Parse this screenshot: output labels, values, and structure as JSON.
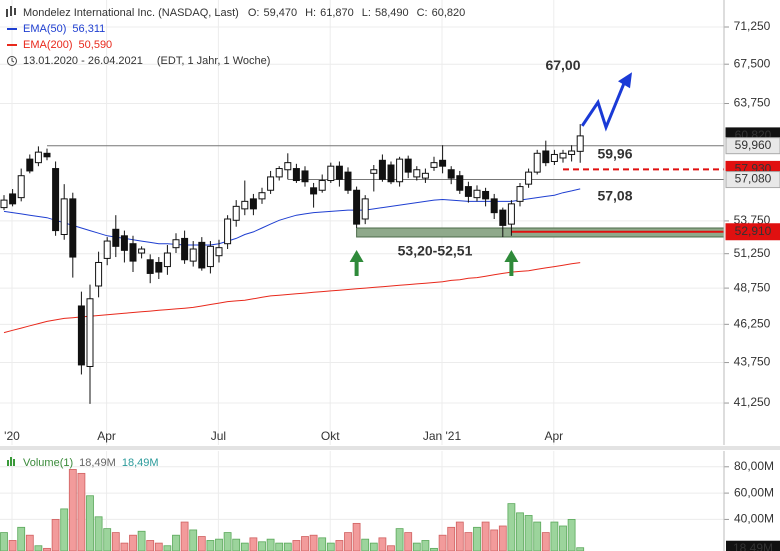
{
  "chart_data": {
    "type": "candlestick",
    "title": "Mondelez International Inc. (NASDAQ, Last)",
    "quote": {
      "labels": [
        "O:",
        "H:",
        "L:",
        "C:"
      ],
      "values": [
        59.47,
        61.87,
        58.49,
        60.82
      ],
      "value_labels": [
        "59,470",
        "61,870",
        "58,490",
        "60,820"
      ]
    },
    "period": "13.01.2020 - 26.04.2021",
    "period_note": "(EDT, 1 Jahr, 1 Woche)",
    "categories": [
      "'20",
      null,
      null,
      null,
      null,
      null,
      null,
      null,
      null,
      null,
      null,
      "Apr",
      null,
      null,
      null,
      null,
      null,
      null,
      null,
      null,
      null,
      null,
      null,
      null,
      "Jul",
      null,
      null,
      null,
      null,
      null,
      null,
      null,
      null,
      null,
      null,
      null,
      null,
      "Okt",
      null,
      null,
      null,
      null,
      null,
      null,
      null,
      null,
      null,
      null,
      null,
      null,
      "Jan '21",
      null,
      null,
      null,
      null,
      null,
      null,
      null,
      null,
      null,
      null,
      null,
      null,
      "Apr",
      null,
      null,
      null,
      null
    ],
    "open": [
      54.8,
      55.9,
      55.6,
      58.8,
      58.5,
      59.3,
      58.0,
      52.7,
      55.5,
      47.5,
      43.5,
      48.9,
      50.9,
      53.1,
      52.6,
      52.0,
      51.3,
      50.8,
      50.6,
      50.3,
      51.7,
      52.4,
      50.7,
      52.1,
      50.3,
      51.1,
      52.0,
      53.8,
      54.7,
      55.5,
      55.5,
      56.2,
      57.3,
      57.9,
      58.0,
      57.8,
      56.4,
      56.2,
      57.0,
      58.2,
      57.7,
      56.2,
      53.9,
      57.6,
      58.7,
      58.3,
      56.9,
      58.8,
      57.3,
      57.2,
      58.1,
      58.7,
      57.9,
      57.4,
      56.5,
      55.6,
      56.1,
      55.5,
      54.6,
      53.5,
      55.3,
      56.7,
      57.7,
      59.5,
      58.6,
      58.9,
      59.2,
      59.47
    ],
    "high": [
      55.8,
      56.3,
      58.0,
      59.2,
      59.9,
      59.7,
      58.6,
      56.7,
      56.0,
      48.5,
      49.0,
      51.4,
      52.5,
      54.2,
      53.0,
      52.6,
      51.8,
      51.2,
      51.0,
      51.9,
      52.8,
      53.0,
      52.2,
      52.5,
      52.2,
      52.3,
      54.2,
      55.4,
      57.0,
      55.9,
      56.4,
      57.8,
      58.2,
      59.3,
      58.4,
      58.2,
      56.8,
      57.5,
      58.5,
      58.6,
      58.1,
      56.5,
      55.8,
      58.3,
      59.2,
      58.6,
      59.0,
      59.1,
      58.2,
      58.0,
      59.0,
      60.0,
      58.2,
      57.8,
      56.9,
      56.6,
      56.4,
      55.9,
      54.8,
      55.4,
      56.8,
      58.0,
      59.6,
      60.4,
      59.6,
      59.6,
      60.0,
      61.87
    ],
    "low": [
      54.6,
      54.9,
      55.3,
      57.6,
      58.2,
      58.7,
      52.6,
      52.3,
      49.5,
      43.0,
      41.2,
      48.1,
      50.4,
      51.0,
      50.6,
      49.9,
      50.9,
      49.1,
      49.4,
      49.7,
      51.3,
      50.5,
      50.3,
      50.0,
      49.8,
      50.6,
      51.6,
      53.3,
      54.2,
      54.2,
      55.1,
      55.9,
      57.0,
      57.1,
      56.8,
      56.5,
      54.8,
      56.0,
      56.8,
      56.5,
      55.9,
      53.2,
      53.5,
      56.1,
      56.9,
      56.7,
      56.5,
      57.2,
      57.0,
      56.8,
      57.8,
      57.6,
      56.7,
      55.9,
      55.2,
      55.3,
      54.9,
      53.9,
      52.5,
      52.6,
      54.9,
      56.4,
      57.5,
      58.2,
      58.3,
      58.5,
      58.6,
      58.49
    ],
    "close": [
      55.4,
      55.1,
      57.4,
      57.8,
      59.4,
      59.0,
      53.0,
      55.5,
      51.0,
      43.6,
      48.0,
      50.6,
      52.2,
      51.8,
      51.5,
      50.7,
      51.6,
      49.8,
      49.9,
      51.3,
      52.3,
      50.8,
      51.6,
      50.2,
      51.8,
      51.7,
      53.9,
      54.9,
      55.3,
      54.7,
      56.0,
      57.3,
      58.0,
      58.5,
      57.0,
      56.9,
      55.9,
      57.0,
      58.2,
      57.1,
      56.2,
      53.5,
      55.5,
      57.9,
      57.1,
      56.9,
      58.8,
      57.7,
      57.9,
      57.6,
      58.5,
      58.2,
      57.2,
      56.2,
      55.7,
      56.2,
      55.5,
      54.4,
      53.4,
      55.1,
      56.5,
      57.7,
      59.3,
      58.5,
      59.2,
      59.3,
      59.5,
      60.82
    ],
    "up_color": "#ffffff",
    "down_color": "#111111",
    "series": [
      {
        "name": "EMA(50)",
        "color": "#1f3fd1",
        "last_label": "56,311",
        "values": [
          54.5,
          54.4,
          54.3,
          54.2,
          54.1,
          54.0,
          53.8,
          53.6,
          53.4,
          53.2,
          53.0,
          52.8,
          52.6,
          52.5,
          52.4,
          52.3,
          52.2,
          52.1,
          52.0,
          52.0,
          51.95,
          51.9,
          51.9,
          51.9,
          51.9,
          52.0,
          52.2,
          52.4,
          52.7,
          52.9,
          53.2,
          53.5,
          53.8,
          54.0,
          54.2,
          54.3,
          54.4,
          54.45,
          54.5,
          54.55,
          54.6,
          54.6,
          54.6,
          54.7,
          54.8,
          54.9,
          55.0,
          55.1,
          55.2,
          55.3,
          55.4,
          55.45,
          55.4,
          55.35,
          55.3,
          55.3,
          55.3,
          55.3,
          55.3,
          55.3,
          55.4,
          55.5,
          55.6,
          55.7,
          55.8,
          56.0,
          56.15,
          56.311
        ]
      },
      {
        "name": "EMA(200)",
        "color": "#e8291c",
        "last_label": "50,590",
        "values": [
          45.7,
          45.85,
          46.0,
          46.15,
          46.3,
          46.45,
          46.55,
          46.65,
          46.7,
          46.75,
          46.8,
          46.85,
          46.9,
          46.95,
          47.0,
          47.05,
          47.1,
          47.15,
          47.2,
          47.25,
          47.3,
          47.35,
          47.4,
          47.5,
          47.6,
          47.7,
          47.8,
          47.85,
          47.9,
          48.0,
          48.1,
          48.2,
          48.25,
          48.3,
          48.35,
          48.4,
          48.45,
          48.5,
          48.55,
          48.6,
          48.65,
          48.7,
          48.75,
          48.8,
          48.85,
          48.9,
          48.95,
          49.0,
          49.05,
          49.1,
          49.15,
          49.2,
          49.3,
          49.35,
          49.45,
          49.5,
          49.6,
          49.7,
          49.8,
          49.9,
          49.95,
          50.0,
          50.1,
          50.2,
          50.3,
          50.4,
          50.5,
          50.59
        ]
      }
    ],
    "ylim": [
      38.81,
      74.1
    ],
    "log_scale": true,
    "grid": true,
    "yticks": [
      {
        "value": 41.25,
        "label": "41,250"
      },
      {
        "value": 43.75,
        "label": "43,750"
      },
      {
        "value": 46.25,
        "label": "46,250"
      },
      {
        "value": 48.75,
        "label": "48,750"
      },
      {
        "value": 51.25,
        "label": "51,250"
      },
      {
        "value": 53.75,
        "label": "53,750"
      },
      {
        "value": 63.75,
        "label": "63,750"
      },
      {
        "value": 67.5,
        "label": "67,500"
      },
      {
        "value": 71.25,
        "label": "71,250"
      }
    ],
    "levels": [
      {
        "value": 59.96,
        "label": "59,960",
        "annotation": "59,96",
        "color": "#777777"
      },
      {
        "value": 57.93,
        "label": "57,930",
        "color": "#e01010"
      },
      {
        "value": 57.08,
        "label": "57,080",
        "annotation": "57,08",
        "color": "#777777"
      },
      {
        "value": 52.91,
        "label": "52,910",
        "color": "#e01010"
      }
    ],
    "zone": {
      "high": 53.2,
      "low": 52.51,
      "label": "53,20-52,51",
      "color": "#8fa98b"
    },
    "target": {
      "value": 67.0,
      "label": "67,00",
      "color": "#1a3ad6"
    },
    "volume": {
      "name": "Volume(1)",
      "legend_labels": [
        "18,49M",
        "18,49M"
      ],
      "last_label": "18,49M",
      "values": [
        30,
        24,
        34,
        28,
        20,
        18,
        40,
        48,
        78,
        75,
        58,
        42,
        33,
        30,
        22,
        28,
        31,
        24,
        22,
        20,
        28,
        38,
        32,
        27,
        24,
        25,
        30,
        25,
        22,
        26,
        23,
        25,
        22,
        22,
        24,
        27,
        28,
        26,
        22,
        24,
        30,
        37,
        25,
        22,
        26,
        20,
        33,
        30,
        22,
        24,
        18,
        28,
        34,
        38,
        30,
        34,
        38,
        32,
        35,
        52,
        45,
        43,
        38,
        30,
        38,
        35,
        40,
        18.49
      ],
      "up_color": "#9cd49c",
      "down_color": "#f29b9b",
      "ylim": [
        16,
        92
      ],
      "yticks": [
        {
          "value": 40,
          "label": "40,00M"
        },
        {
          "value": 60,
          "label": "60,00M"
        },
        {
          "value": 80,
          "label": "80,00M"
        }
      ]
    }
  }
}
